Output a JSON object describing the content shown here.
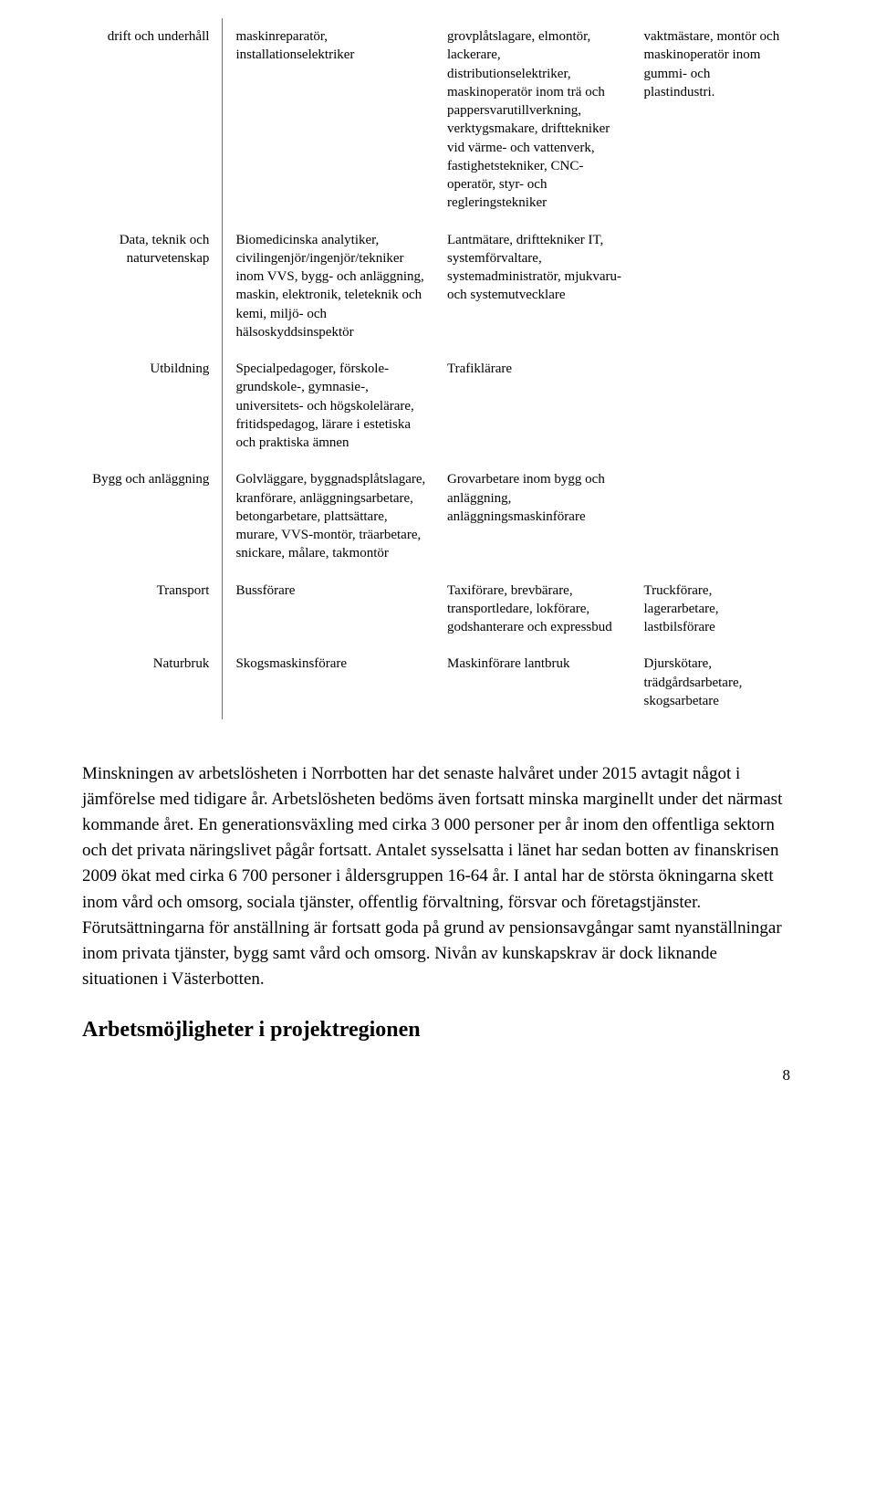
{
  "table": {
    "rows": [
      {
        "label": "drift och underhåll",
        "c1": "maskinreparatör, installationselektriker",
        "c2": "grovplåtslagare, elmontör, lackerare, distributionselektriker, maskinoperatör inom trä och pappersvarutillverkning, verktygsmakare, drifttekniker vid värme- och vattenverk, fastighetstekniker, CNC-operatör, styr- och regleringstekniker",
        "c3": "vaktmästare, montör och maskinoperatör inom gummi- och plastindustri."
      },
      {
        "label": "Data, teknik och naturvetenskap",
        "c1": "Biomedicinska analytiker, civilingenjör/ingenjör/tekniker inom VVS, bygg- och anläggning, maskin, elektronik, teleteknik och kemi, miljö- och hälsoskyddsinspektör",
        "c2": "Lantmätare, drifttekniker IT, systemförvaltare, systemadministratör, mjukvaru- och systemutvecklare",
        "c3": ""
      },
      {
        "label": "Utbildning",
        "c1": "Specialpedagoger, förskole- grundskole-, gymnasie-, universitets- och högskolelärare, fritidspedagog, lärare i estetiska och praktiska ämnen",
        "c2": "Trafiklärare",
        "c3": ""
      },
      {
        "label": "Bygg och anläggning",
        "c1": "Golvläggare, byggnadsplåtslagare, kranförare, anläggningsarbetare, betongarbetare, plattsättare, murare, VVS-montör, träarbetare, snickare, målare, takmontör",
        "c2": "Grovarbetare inom bygg och anläggning, anläggningsmaskinförare",
        "c3": ""
      },
      {
        "label": "Transport",
        "c1": "Bussförare",
        "c2": "Taxiförare, brevbärare, transportledare, lokförare, godshanterare och expressbud",
        "c3": "Truckförare, lagerarbetare, lastbilsförare"
      },
      {
        "label": "Naturbruk",
        "c1": "Skogsmaskinsförare",
        "c2": "Maskinförare lantbruk",
        "c3": "Djurskötare, trädgårdsarbetare, skogsarbetare"
      }
    ]
  },
  "paragraph": "Minskningen av arbetslösheten i Norrbotten har det senaste halvåret under 2015 avtagit något i jämförelse med tidigare år. Arbetslösheten bedöms även fortsatt minska marginellt under det närmast kommande året. En generationsväxling med cirka 3 000 personer per år inom den offentliga sektorn och det privata näringslivet pågår fortsatt. Antalet sysselsatta i länet har sedan botten av finanskrisen 2009 ökat med cirka 6 700 personer i åldersgruppen 16-64 år. I antal har de största ökningarna skett inom vård och omsorg, sociala tjänster, offentlig förvaltning, försvar och företagstjänster. Förutsättningarna för anställning är fortsatt goda på grund av pensionsavgångar samt nyanställningar inom privata tjänster, bygg samt vård och omsorg. Nivån av kunskapskrav är dock liknande situationen i Västerbotten.",
  "heading": "Arbetsmöjligheter i projektregionen",
  "page_number": "8"
}
